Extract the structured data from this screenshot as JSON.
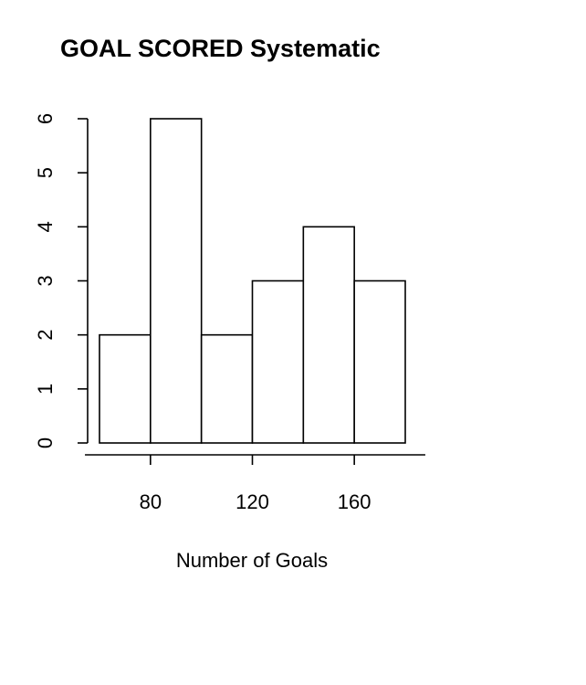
{
  "chart_data": {
    "type": "bar",
    "title": "GOAL SCORED Systematic",
    "xlabel": "Number of Goals",
    "ylabel": "",
    "bins": [
      [
        60,
        80
      ],
      [
        80,
        100
      ],
      [
        100,
        120
      ],
      [
        120,
        140
      ],
      [
        140,
        160
      ],
      [
        160,
        180
      ]
    ],
    "values": [
      2,
      6,
      2,
      3,
      4,
      3
    ],
    "xlim": [
      55,
      185
    ],
    "ylim": [
      0,
      6
    ],
    "x_ticks": [
      80,
      120,
      160
    ],
    "y_ticks": [
      0,
      1,
      2,
      3,
      4,
      5,
      6
    ],
    "grid": false
  }
}
